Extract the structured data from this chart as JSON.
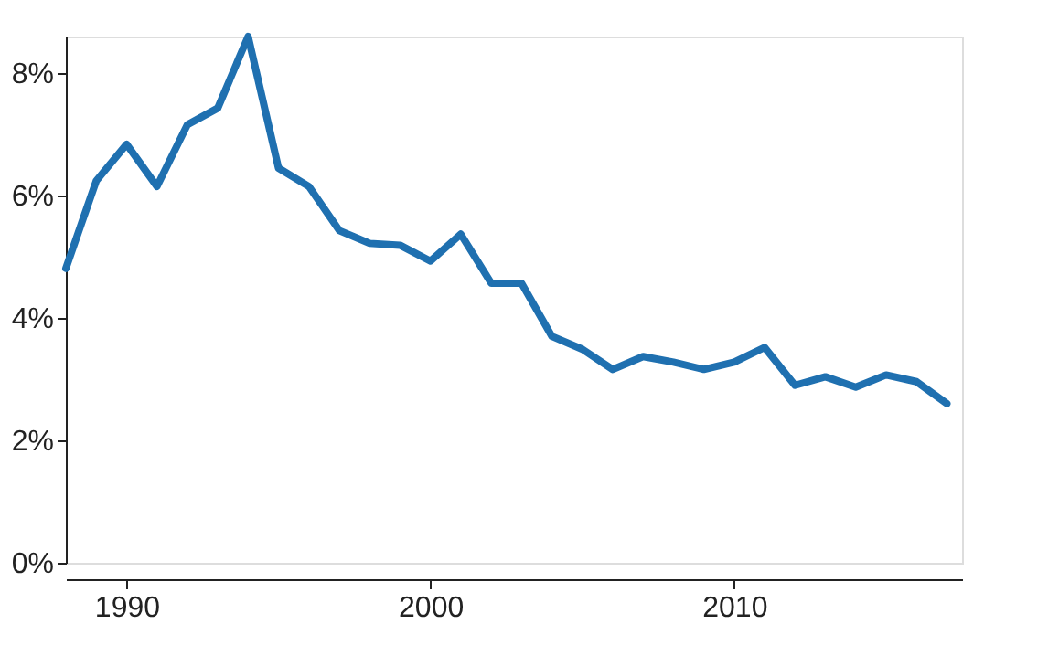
{
  "chart_data": {
    "type": "line",
    "x": [
      1988,
      1989,
      1990,
      1991,
      1992,
      1993,
      1994,
      1995,
      1996,
      1997,
      1998,
      1999,
      2000,
      2001,
      2002,
      2003,
      2004,
      2005,
      2006,
      2007,
      2008,
      2009,
      2010,
      2011,
      2012,
      2013,
      2014,
      2015,
      2016,
      2017
    ],
    "series": [
      {
        "color": "#1f70b0",
        "values": [
          4.81,
          6.24,
          6.84,
          6.15,
          7.16,
          7.43,
          8.6,
          6.45,
          6.15,
          5.43,
          5.22,
          5.19,
          4.93,
          5.37,
          4.57,
          4.57,
          3.7,
          3.49,
          3.16,
          3.37,
          3.28,
          3.16,
          3.28,
          3.52,
          2.9,
          3.04,
          2.87,
          3.07,
          2.96,
          2.6
        ]
      }
    ],
    "xlim": [
      1988,
      2017.5
    ],
    "xticks": [
      1990,
      2000,
      2010
    ],
    "ylim": [
      0,
      8.6
    ],
    "yticks": [
      {
        "value": 0,
        "label": "0%"
      },
      {
        "value": 2,
        "label": "2%"
      },
      {
        "value": 4,
        "label": "4%"
      },
      {
        "value": 6,
        "label": "6%"
      },
      {
        "value": 8,
        "label": "8%"
      }
    ],
    "grid": false,
    "legend": false,
    "marker": "none",
    "line_style": "solid"
  }
}
